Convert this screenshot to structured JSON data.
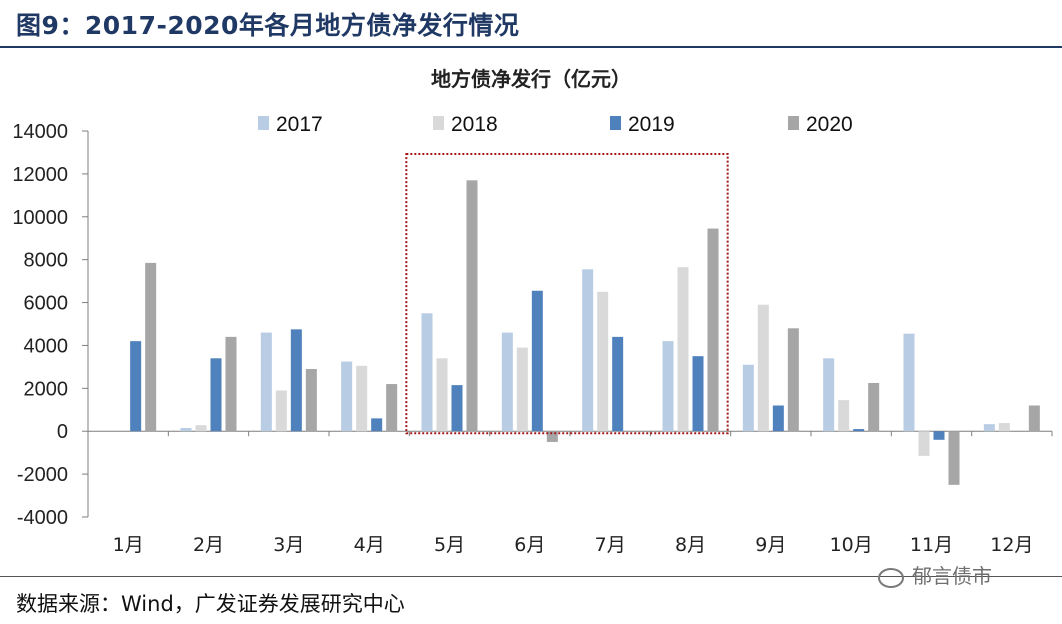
{
  "figure_title": "图9：2017-2020年各月地方债净发行情况",
  "source": "数据来源：Wind，广发证券发展研究中心",
  "watermark": "郁言债市",
  "chart_data": {
    "type": "bar",
    "title": "地方债净发行（亿元）",
    "categories": [
      "1月",
      "2月",
      "3月",
      "4月",
      "5月",
      "6月",
      "7月",
      "8月",
      "9月",
      "10月",
      "11月",
      "12月"
    ],
    "ylim": [
      -4000,
      14000
    ],
    "yticks": [
      14000,
      12000,
      10000,
      8000,
      6000,
      4000,
      2000,
      0,
      -2000,
      -4000
    ],
    "grid": false,
    "legend_position": "top",
    "highlight_box": {
      "from_category": "5月",
      "to_category": "8月",
      "color": "#a01818",
      "style": "dotted"
    },
    "series": [
      {
        "name": "2017",
        "color": "#b8cce4",
        "values": [
          0,
          150,
          4600,
          3250,
          5500,
          4600,
          7550,
          4200,
          3100,
          3400,
          4550,
          330
        ]
      },
      {
        "name": "2018",
        "color": "#d9d9d9",
        "values": [
          0,
          280,
          1900,
          3050,
          3400,
          3900,
          6500,
          7650,
          5900,
          1450,
          -1150,
          380
        ]
      },
      {
        "name": "2019",
        "color": "#4f81bd",
        "values": [
          4200,
          3400,
          4750,
          600,
          2150,
          6550,
          4400,
          3500,
          1200,
          100,
          -400,
          0
        ]
      },
      {
        "name": "2020",
        "color": "#a6a6a6",
        "values": [
          7850,
          4400,
          2900,
          2200,
          11700,
          -500,
          0,
          9450,
          4800,
          2250,
          -2500,
          1200
        ]
      }
    ]
  }
}
